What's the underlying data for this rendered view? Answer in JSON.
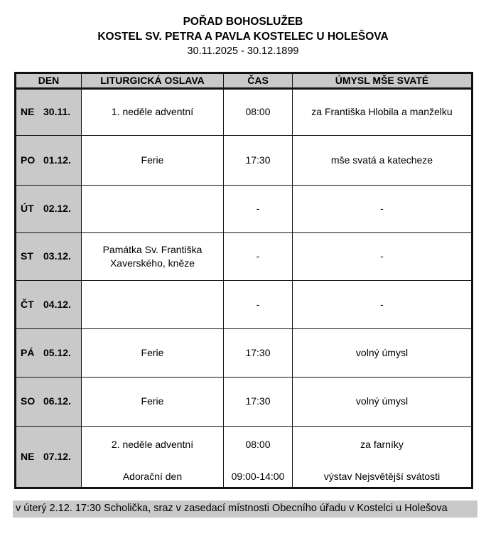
{
  "header": {
    "title": "POŘAD BOHOSLUŽEB",
    "church": "KOSTEL SV. PETRA A PAVLA KOSTELEC U HOLEŠOVA",
    "date_range": "30.11.2025 - 30.12.1899"
  },
  "table": {
    "columns": {
      "day": "DEN",
      "liturgy": "LITURGICKÁ OSLAVA",
      "time": "ČAS",
      "intention": "ÚMYSL MŠE SVATÉ"
    },
    "rows": [
      {
        "day": "NE",
        "date": "30.11.",
        "liturgy": "1. neděle adventní",
        "time": "08:00",
        "intention": "za Františka Hlobila a manželku"
      },
      {
        "day": "PO",
        "date": "01.12.",
        "liturgy": "Ferie",
        "time": "17:30",
        "intention": "mše svatá a katecheze"
      },
      {
        "day": "ÚT",
        "date": "02.12.",
        "liturgy": "",
        "time": "-",
        "intention": "-"
      },
      {
        "day": "ST",
        "date": "03.12.",
        "liturgy": "Památka Sv. Františka Xaverského, kněze",
        "time": "-",
        "intention": "-"
      },
      {
        "day": "ČT",
        "date": "04.12.",
        "liturgy": "",
        "time": "-",
        "intention": "-"
      },
      {
        "day": "PÁ",
        "date": "05.12.",
        "liturgy": "Ferie",
        "time": "17:30",
        "intention": "volný úmysl"
      },
      {
        "day": "SO",
        "date": "06.12.",
        "liturgy": "Ferie",
        "time": "17:30",
        "intention": "volný úmysl"
      },
      {
        "day": "NE",
        "date": "07.12.",
        "liturgy": "2. neděle adventní",
        "time": "08:00",
        "intention": "za farníky",
        "liturgy_secondary": "Adorační den",
        "time_secondary": "09:00-14:00",
        "intention_secondary": "výstav Nejsvětější svátosti"
      }
    ]
  },
  "footer": {
    "text": "v úterý 2.12. 17:30 Scholička, sraz v zasedací místnosti Obecního úřadu v Kostelci u Holešova"
  },
  "colors": {
    "header_fill": "#c9c9c9",
    "day_column_fill": "#c9c9c9",
    "note_fill": "#c9c9c9",
    "border": "#111111",
    "text": "#000000",
    "background": "#ffffff"
  }
}
